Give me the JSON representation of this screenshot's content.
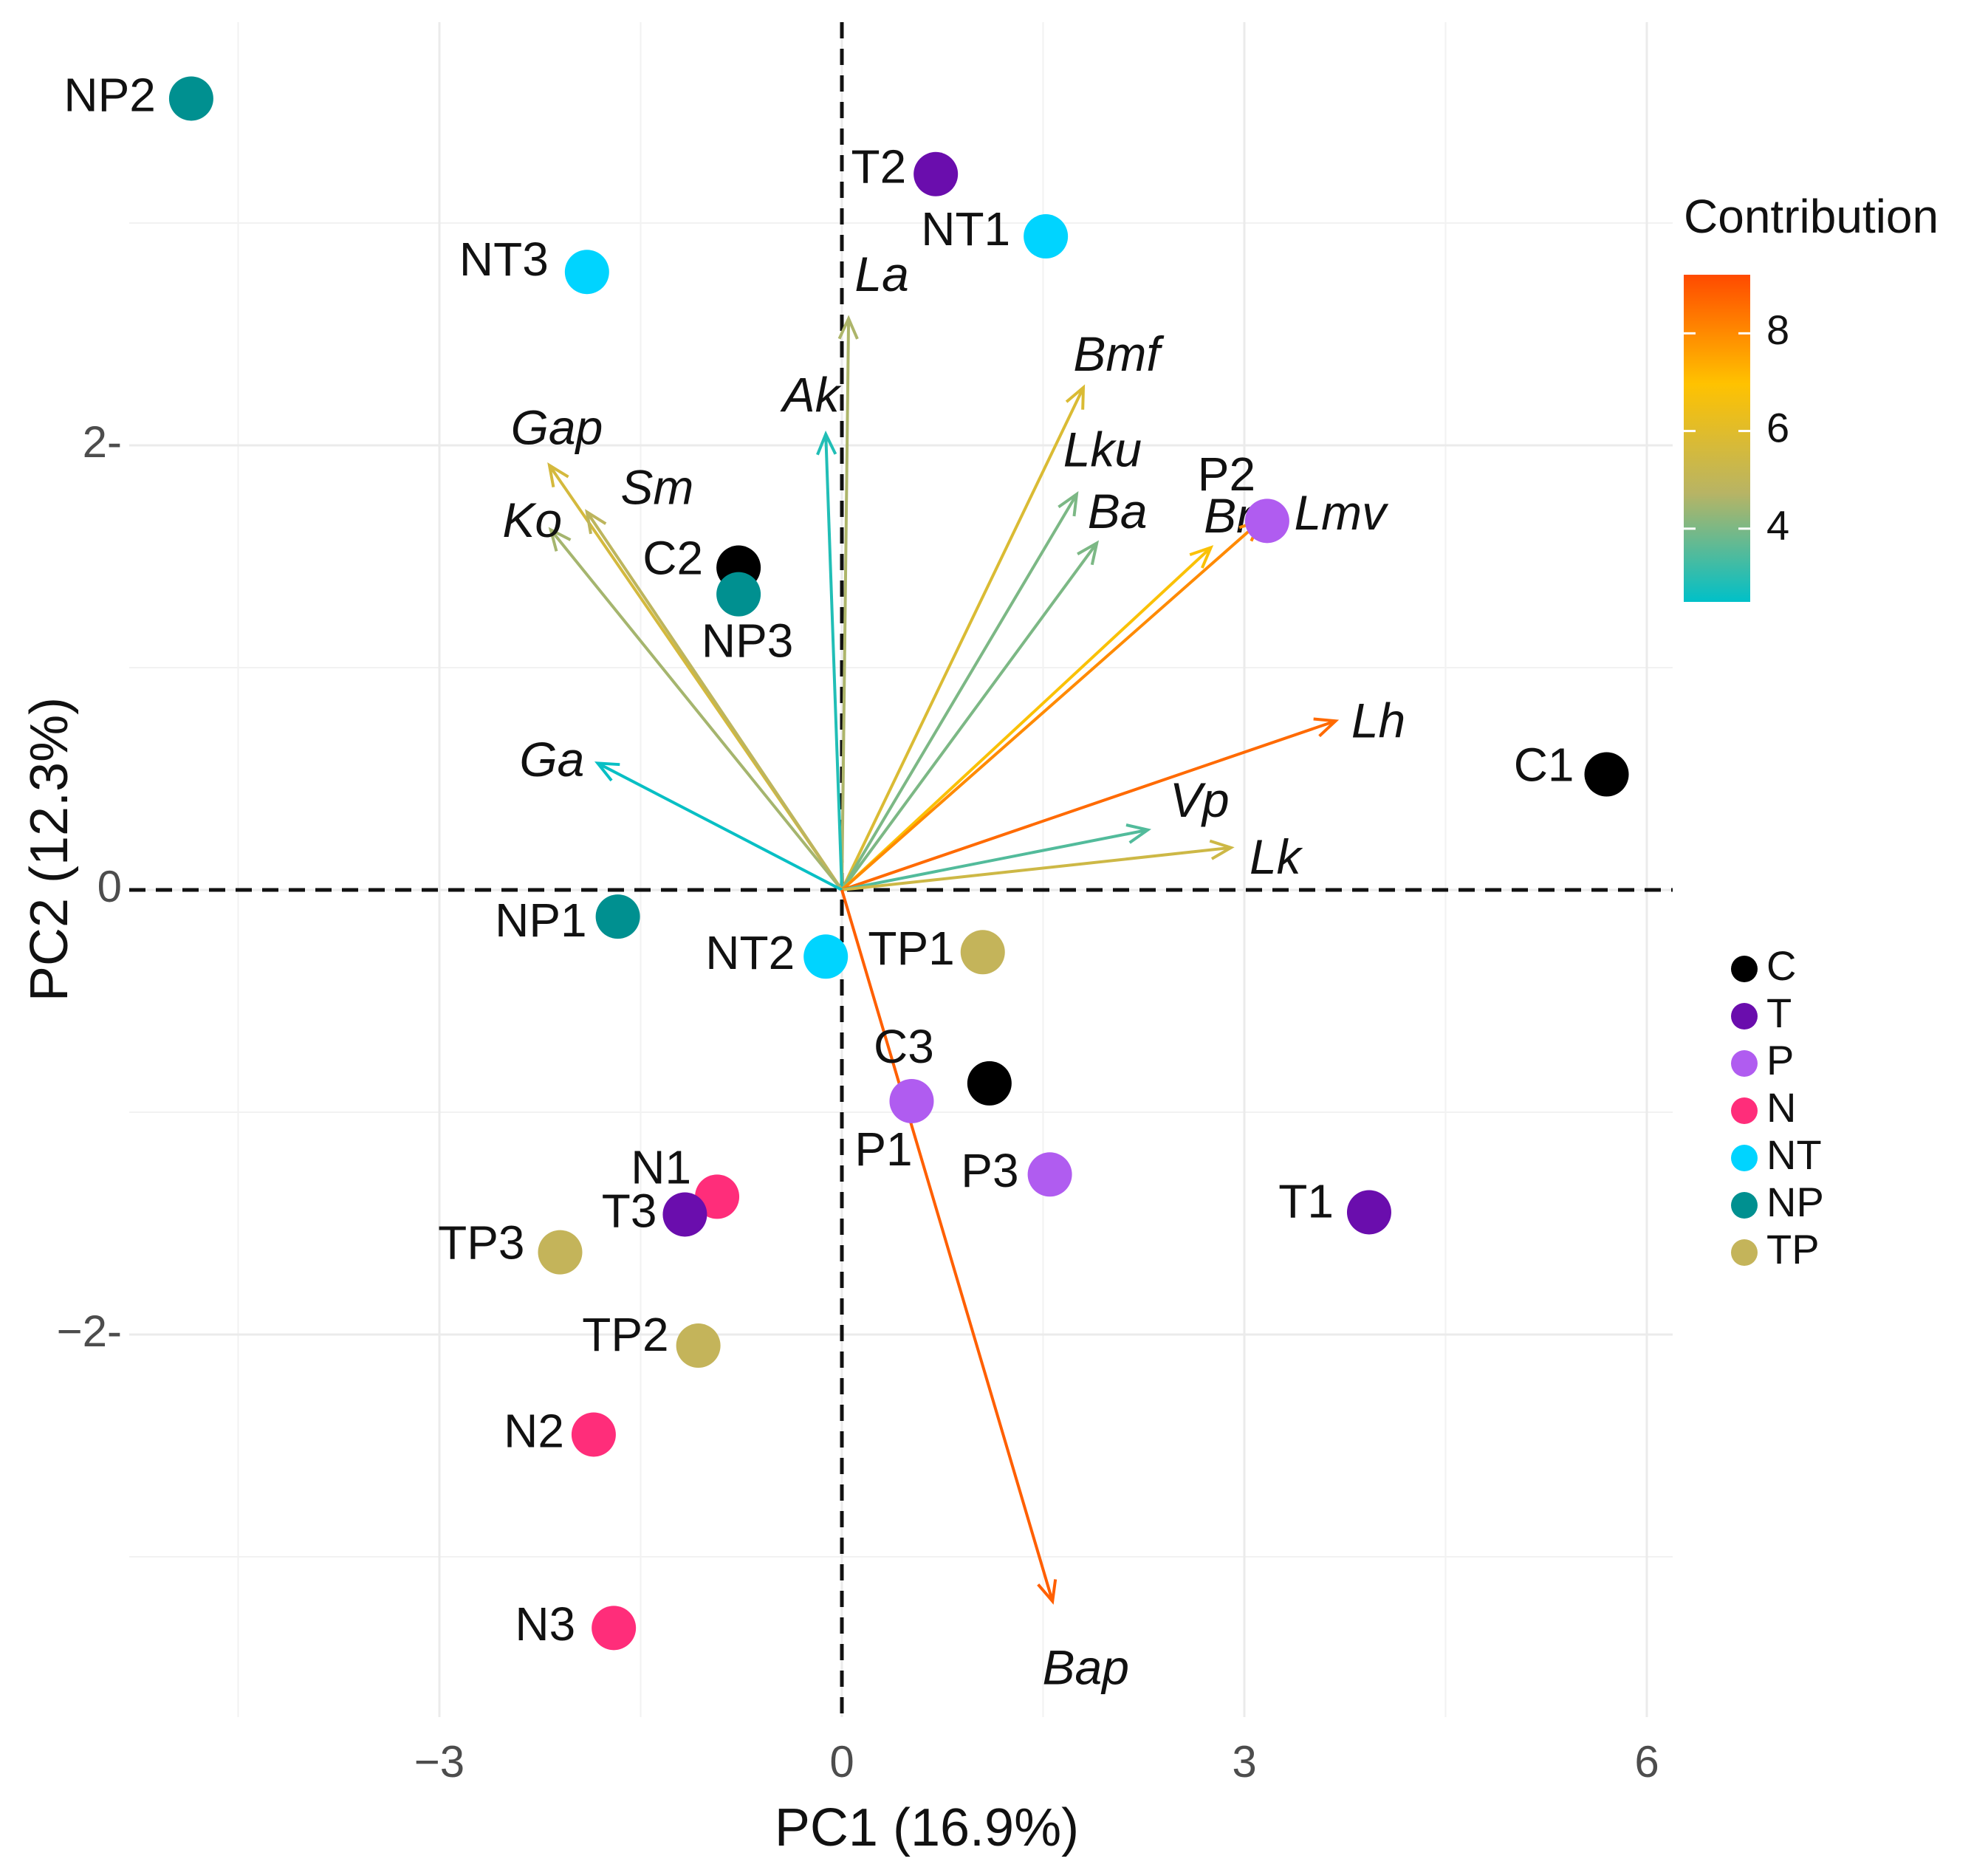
{
  "chart_data": {
    "type": "scatter",
    "subtype": "pca-biplot",
    "xlabel": "PC1 (16.9%)",
    "ylabel": "PC2 (12.3%)",
    "xlim": [
      -5.0,
      6.2
    ],
    "ylim": [
      -3.7,
      3.9
    ],
    "x_ticks": [
      -3,
      0,
      3,
      6
    ],
    "x_tick_labels": [
      "−3",
      "0",
      "3",
      "6"
    ],
    "y_ticks": [
      -2,
      0,
      2
    ],
    "y_tick_labels": [
      "−2-",
      "0",
      "2-"
    ],
    "group_colors": {
      "C": "#000000",
      "T": "#6a0dad",
      "P": "#b05cf0",
      "N": "#ff2d7a",
      "NT": "#00d4ff",
      "NP": "#009090",
      "TP": "#c4b45a"
    },
    "legend_groups": [
      "C",
      "T",
      "P",
      "N",
      "NT",
      "NP",
      "TP"
    ],
    "points": [
      {
        "label": "NP2",
        "group": "NP",
        "x": -4.85,
        "y": 3.56
      },
      {
        "label": "T2",
        "group": "T",
        "x": 0.7,
        "y": 3.22
      },
      {
        "label": "NT1",
        "group": "NT",
        "x": 1.52,
        "y": 2.94
      },
      {
        "label": "NT3",
        "group": "NT",
        "x": -1.9,
        "y": 2.78
      },
      {
        "label": "C2",
        "group": "C",
        "x": -0.77,
        "y": 1.45
      },
      {
        "label": "NP3",
        "group": "NP",
        "x": -0.77,
        "y": 1.33
      },
      {
        "label": "P2",
        "group": "P",
        "x": 3.17,
        "y": 1.66
      },
      {
        "label": "C1",
        "group": "C",
        "x": 5.7,
        "y": 0.52
      },
      {
        "label": "NP1",
        "group": "NP",
        "x": -1.67,
        "y": -0.12
      },
      {
        "label": "NT2",
        "group": "NT",
        "x": -0.12,
        "y": -0.3
      },
      {
        "label": "TP1",
        "group": "TP",
        "x": 1.05,
        "y": -0.28
      },
      {
        "label": "C3",
        "group": "C",
        "x": 1.1,
        "y": -0.87
      },
      {
        "label": "P1",
        "group": "P",
        "x": 0.52,
        "y": -0.95
      },
      {
        "label": "P3",
        "group": "P",
        "x": 1.55,
        "y": -1.28
      },
      {
        "label": "T1",
        "group": "T",
        "x": 3.93,
        "y": -1.45
      },
      {
        "label": "N1",
        "group": "N",
        "x": -0.93,
        "y": -1.38
      },
      {
        "label": "T3",
        "group": "T",
        "x": -1.17,
        "y": -1.46
      },
      {
        "label": "TP3",
        "group": "TP",
        "x": -2.1,
        "y": -1.63
      },
      {
        "label": "TP2",
        "group": "TP",
        "x": -1.07,
        "y": -2.05
      },
      {
        "label": "N2",
        "group": "N",
        "x": -1.85,
        "y": -2.45
      },
      {
        "label": "N3",
        "group": "N",
        "x": -1.7,
        "y": -3.32
      }
    ],
    "variables": [
      {
        "label": "La",
        "x": 0.05,
        "y": 2.57,
        "contribution": 4.6
      },
      {
        "label": "Bmf",
        "x": 1.8,
        "y": 2.26,
        "contribution": 5.8
      },
      {
        "label": "Ak",
        "x": -0.12,
        "y": 2.05,
        "contribution": 2.9
      },
      {
        "label": "Gap",
        "x": -2.18,
        "y": 1.91,
        "contribution": 5.6
      },
      {
        "label": "Sm",
        "x": -1.9,
        "y": 1.7,
        "contribution": 4.9
      },
      {
        "label": "Ko",
        "x": -2.17,
        "y": 1.62,
        "contribution": 4.5
      },
      {
        "label": "Lku",
        "x": 1.75,
        "y": 1.78,
        "contribution": 4.0
      },
      {
        "label": "Ba",
        "x": 1.9,
        "y": 1.56,
        "contribution": 4.0
      },
      {
        "label": "Bm",
        "x": 2.75,
        "y": 1.54,
        "contribution": 6.8
      },
      {
        "label": "Lmv",
        "x": 3.12,
        "y": 1.66,
        "contribution": 8.0
      },
      {
        "label": "Lh",
        "x": 3.68,
        "y": 0.76,
        "contribution": 8.6
      },
      {
        "label": "Vp",
        "x": 2.28,
        "y": 0.27,
        "contribution": 3.5
      },
      {
        "label": "Lk",
        "x": 2.9,
        "y": 0.19,
        "contribution": 5.4
      },
      {
        "label": "Ga",
        "x": -1.82,
        "y": 0.57,
        "contribution": 2.6
      },
      {
        "label": "Bap",
        "x": 1.57,
        "y": -3.2,
        "contribution": 8.8
      }
    ],
    "contribution_legend": {
      "title": "Contribution",
      "min": 2.5,
      "max": 9.2,
      "ticks": [
        4,
        6,
        8
      ],
      "colors": [
        "#00c0c8",
        "#b8b464",
        "#ffc200",
        "#ff4a00"
      ]
    }
  }
}
